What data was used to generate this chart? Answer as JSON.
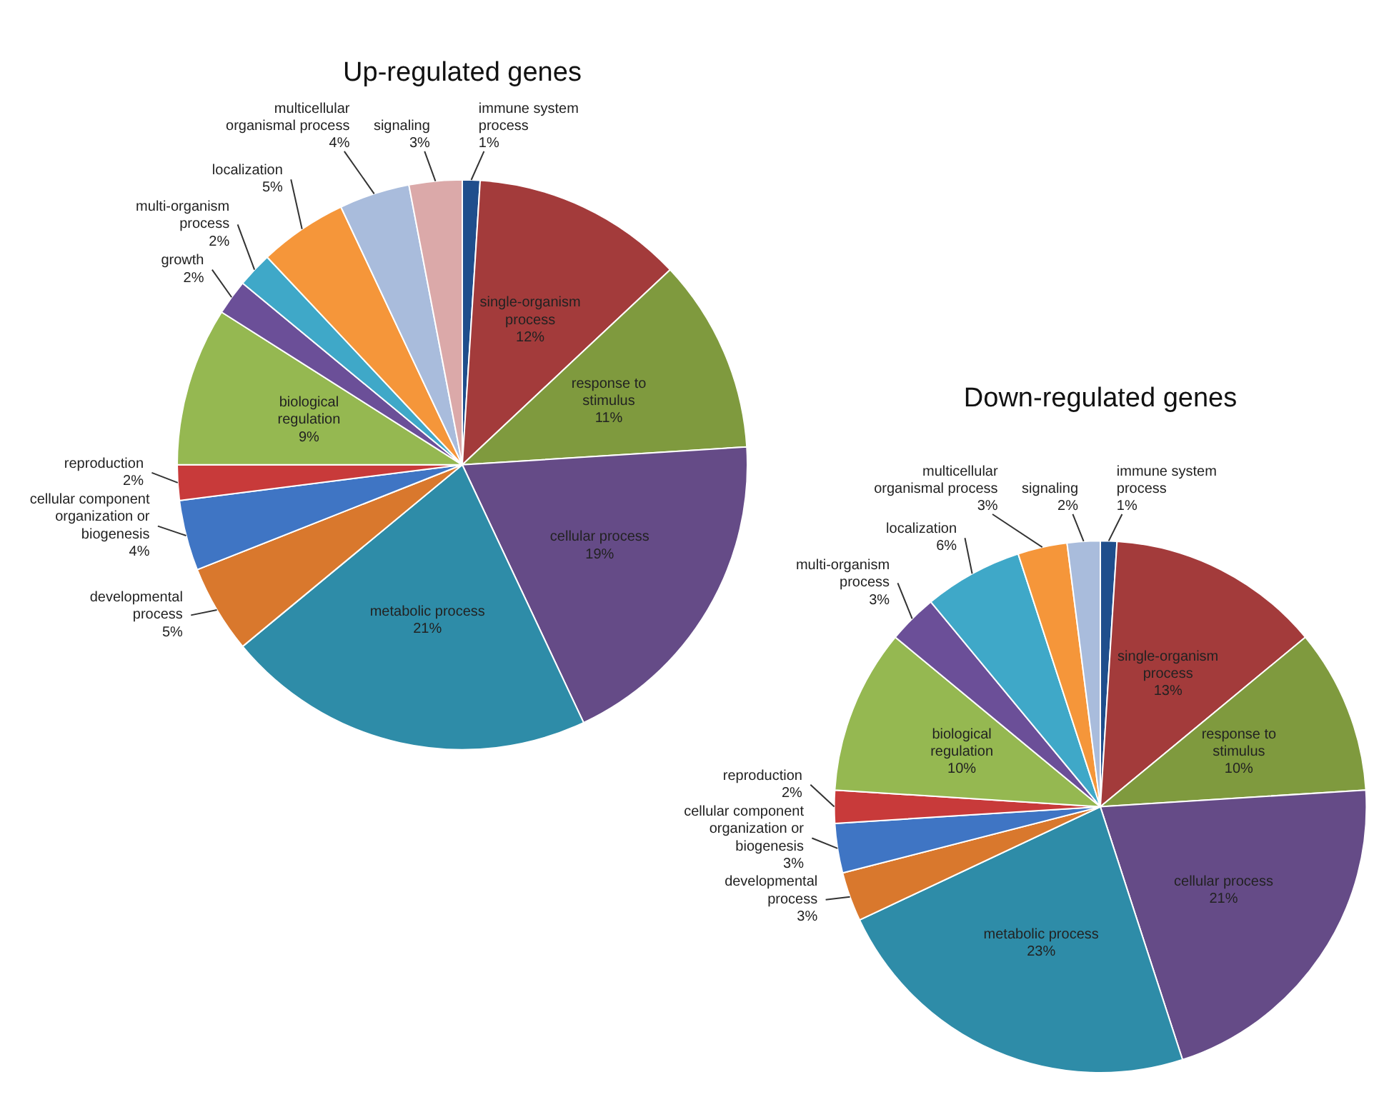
{
  "chart_data": [
    {
      "type": "pie",
      "title": "Up-regulated genes",
      "categories": [
        "immune system process",
        "single-organism process",
        "response to stimulus",
        "cellular process",
        "metabolic process",
        "developmental process",
        "cellular component organization or biogenesis",
        "reproduction",
        "biological regulation",
        "growth",
        "multi-organism process",
        "localization",
        "multicellular organismal process",
        "signaling"
      ],
      "values": [
        1,
        12,
        11,
        19,
        21,
        5,
        4,
        2,
        9,
        2,
        2,
        5,
        4,
        3
      ],
      "value_labels": [
        "1%",
        "12%",
        "11%",
        "19%",
        "21%",
        "5%",
        "4%",
        "2%",
        "9%",
        "2%",
        "2%",
        "5%",
        "4%",
        "3%"
      ],
      "colors": [
        "#1f4e8c",
        "#a33b3b",
        "#7f9a3e",
        "#654b87",
        "#2e8ca8",
        "#d9782d",
        "#3f75c4",
        "#c83a3a",
        "#95b851",
        "#6b4f98",
        "#3fa8c8",
        "#f5963a",
        "#a9bcdc",
        "#dba9a9"
      ]
    },
    {
      "type": "pie",
      "title": "Down-regulated genes",
      "categories": [
        "immune system process",
        "single-organism process",
        "response to stimulus",
        "cellular process",
        "metabolic process",
        "developmental process",
        "cellular component organization or biogenesis",
        "reproduction",
        "biological regulation",
        "multi-organism process",
        "localization",
        "multicellular organismal process",
        "signaling"
      ],
      "values": [
        1,
        13,
        10,
        21,
        23,
        3,
        3,
        2,
        10,
        3,
        6,
        3,
        2
      ],
      "value_labels": [
        "1%",
        "13%",
        "10%",
        "21%",
        "23%",
        "3%",
        "3%",
        "2%",
        "10%",
        "3%",
        "6%",
        "3%",
        "2%"
      ],
      "colors": [
        "#1f4e8c",
        "#a33b3b",
        "#7f9a3e",
        "#654b87",
        "#2e8ca8",
        "#d9782d",
        "#3f75c4",
        "#c83a3a",
        "#95b851",
        "#6b4f98",
        "#3fa8c8",
        "#f5963a",
        "#a9bcdc"
      ]
    }
  ]
}
